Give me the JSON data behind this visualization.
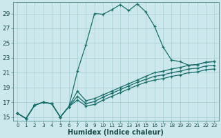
{
  "xlabel": "Humidex (Indice chaleur)",
  "bg_color": "#cce8ec",
  "grid_color": "#a8cdd4",
  "line_color": "#1a6e6a",
  "xlim": [
    -0.5,
    23.5
  ],
  "ylim": [
    14.5,
    30.5
  ],
  "xticks": [
    0,
    1,
    2,
    3,
    4,
    5,
    6,
    7,
    8,
    9,
    10,
    11,
    12,
    13,
    14,
    15,
    16,
    17,
    18,
    19,
    20,
    21,
    22,
    23
  ],
  "yticks": [
    15,
    17,
    19,
    21,
    23,
    25,
    27,
    29
  ],
  "series1_x": [
    0,
    1,
    2,
    3,
    4,
    5,
    6,
    7,
    8,
    9,
    10,
    11,
    12,
    13,
    14,
    15,
    16,
    17,
    18,
    19,
    20,
    21,
    22,
    23
  ],
  "series1_y": [
    15.5,
    14.8,
    16.6,
    17.0,
    16.8,
    15.0,
    16.4,
    21.2,
    24.8,
    29.0,
    28.9,
    29.5,
    30.2,
    29.4,
    30.3,
    29.2,
    27.3,
    24.5,
    22.7,
    22.5,
    22.0,
    22.1,
    22.4,
    22.5
  ],
  "series2_x": [
    0,
    1,
    2,
    3,
    4,
    5,
    6,
    7,
    8,
    9,
    10,
    11,
    12,
    13,
    14,
    15,
    16,
    17,
    18,
    19,
    20,
    21,
    22,
    23
  ],
  "series2_y": [
    15.5,
    14.8,
    16.6,
    17.0,
    16.8,
    15.0,
    16.4,
    18.5,
    17.2,
    17.5,
    18.0,
    18.5,
    19.0,
    19.5,
    20.0,
    20.5,
    21.0,
    21.2,
    21.5,
    21.7,
    22.0,
    22.1,
    22.4,
    22.5
  ],
  "series3_x": [
    0,
    1,
    2,
    3,
    4,
    5,
    6,
    7,
    8,
    9,
    10,
    11,
    12,
    13,
    14,
    15,
    16,
    17,
    18,
    19,
    20,
    21,
    22,
    23
  ],
  "series3_y": [
    15.5,
    14.8,
    16.6,
    17.0,
    16.8,
    15.0,
    16.4,
    17.8,
    16.8,
    17.1,
    17.7,
    18.2,
    18.7,
    19.2,
    19.7,
    20.1,
    20.5,
    20.7,
    21.0,
    21.2,
    21.5,
    21.6,
    21.9,
    22.0
  ],
  "series4_x": [
    0,
    1,
    2,
    3,
    4,
    5,
    6,
    7,
    8,
    9,
    10,
    11,
    12,
    13,
    14,
    15,
    16,
    17,
    18,
    19,
    20,
    21,
    22,
    23
  ],
  "series4_y": [
    15.5,
    14.8,
    16.6,
    17.0,
    16.8,
    15.0,
    16.4,
    17.3,
    16.5,
    16.7,
    17.3,
    17.8,
    18.3,
    18.8,
    19.3,
    19.7,
    20.0,
    20.2,
    20.5,
    20.7,
    21.0,
    21.1,
    21.4,
    21.5
  ],
  "marker_size": 3.0,
  "line_width": 0.9,
  "font_size_label": 7,
  "font_size_tick_y": 6.5,
  "font_size_tick_x": 5.2
}
